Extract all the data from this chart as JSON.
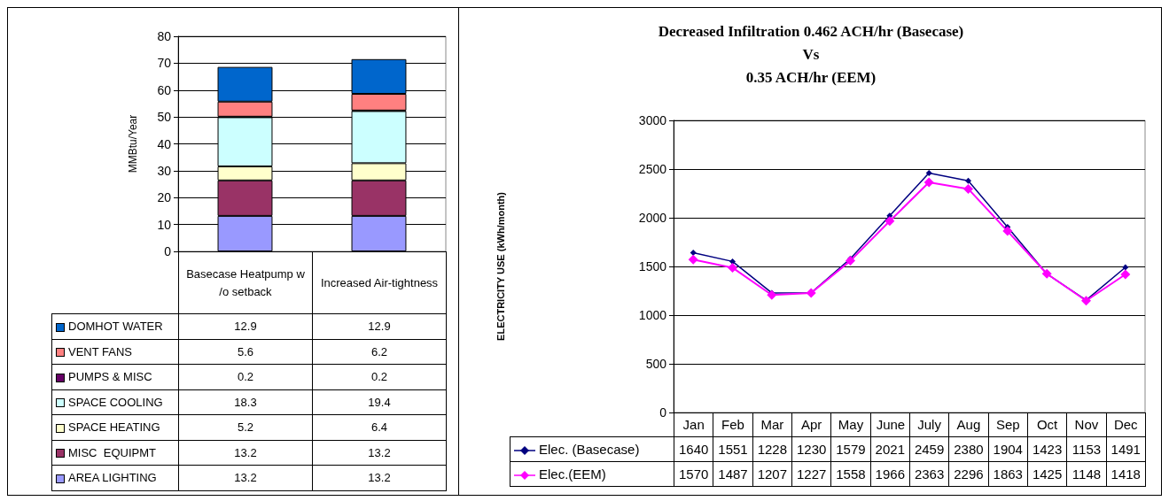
{
  "chart_data": [
    {
      "type": "bar",
      "stacked": true,
      "ylabel": "MMBtu/Year",
      "categories": [
        "Basecase Heatpump w /o setback",
        "Increased Air-tightness"
      ],
      "ylim": [
        0,
        80
      ],
      "yticks": [
        0,
        10,
        20,
        30,
        40,
        50,
        60,
        70,
        80
      ],
      "grid": "y",
      "legend": "bottom",
      "series": [
        {
          "name": "AREA LIGHTING",
          "color": "#9999ff",
          "values": [
            13.2,
            13.2
          ],
          "value_labels": [
            "13.2",
            "13.2"
          ]
        },
        {
          "name": "MISC  EQUIPMT",
          "color": "#993366",
          "values": [
            13.2,
            13.2
          ],
          "value_labels": [
            "13.2",
            "13.2"
          ]
        },
        {
          "name": "SPACE HEATING",
          "color": "#ffffcc",
          "values": [
            5.2,
            6.4
          ],
          "value_labels": [
            "5.2",
            "6.4"
          ]
        },
        {
          "name": "SPACE COOLING",
          "color": "#ccffff",
          "values": [
            18.3,
            19.4
          ],
          "value_labels": [
            "18.3",
            "19.4"
          ]
        },
        {
          "name": "PUMPS & MISC",
          "color": "#660066",
          "values": [
            0.2,
            0.2
          ],
          "value_labels": [
            "0.2",
            "0.2"
          ]
        },
        {
          "name": "VENT FANS",
          "color": "#ff8080",
          "values": [
            5.6,
            6.2
          ],
          "value_labels": [
            "5.6",
            "6.2"
          ]
        },
        {
          "name": "DOMHOT WATER",
          "color": "#0066cc",
          "values": [
            12.9,
            12.9
          ],
          "value_labels": [
            "12.9",
            "12.9"
          ]
        }
      ]
    },
    {
      "type": "line",
      "title": "Decreased Infiltration 0.462 ACH/hr (Basecase)\nVs\n0.35 ACH/hr (EEM)",
      "ylabel": "ELECTRICITY USE (kWh/month)",
      "categories": [
        "Jan",
        "Feb",
        "Mar",
        "Apr",
        "May",
        "June",
        "July",
        "Aug",
        "Sep",
        "Oct",
        "Nov",
        "Dec"
      ],
      "ylim": [
        0,
        3000
      ],
      "yticks": [
        0,
        500,
        1000,
        1500,
        2000,
        2500,
        3000
      ],
      "grid": "y",
      "legend": "bottom",
      "marker": "diamond",
      "line_style": "solid",
      "data_labels": true,
      "series": [
        {
          "name": "Elec. (Basecase)",
          "color": "#000080",
          "values": [
            1640,
            1551,
            1228,
            1230,
            1579,
            2021,
            2459,
            2380,
            1904,
            1423,
            1153,
            1491
          ]
        },
        {
          "name": "Elec.(EEM)",
          "color": "#ff00ff",
          "values": [
            1570,
            1487,
            1207,
            1227,
            1558,
            1966,
            2363,
            2296,
            1863,
            1425,
            1148,
            1418
          ]
        }
      ]
    }
  ]
}
